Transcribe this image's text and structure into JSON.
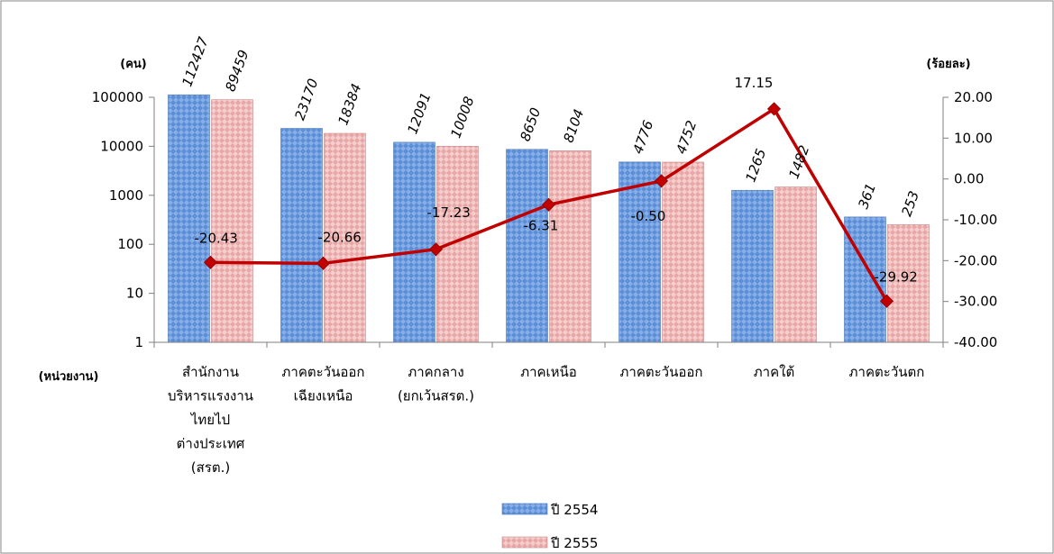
{
  "chart_data": {
    "type": "bar",
    "y_unit_left": "(คน)",
    "y_unit_right": "(ร้อยละ)",
    "x_unit": "(หน่วยงาน)",
    "categories": [
      [
        "สำนักงาน",
        "บริหารแรงงาน",
        "ไทยไป",
        "ต่างประเทศ",
        "(สรต.)"
      ],
      [
        "ภาคตะวันออก",
        "เฉียงเหนือ"
      ],
      [
        "ภาคกลาง",
        "(ยกเว้นสรต.)"
      ],
      [
        "ภาคเหนือ"
      ],
      [
        "ภาคตะวันออก"
      ],
      [
        "ภาคใต้"
      ],
      [
        "ภาคตะวันตก"
      ]
    ],
    "left_axis": {
      "scale": "log",
      "ticks": [
        "1",
        "10",
        "100",
        "1000",
        "10000",
        "100000"
      ],
      "range": [
        1,
        100000
      ]
    },
    "right_axis": {
      "ticks": [
        "20.00",
        "10.00",
        "0.00",
        "-10.00",
        "-20.00",
        "-30.00",
        "-40.00"
      ],
      "range": [
        -40,
        20
      ]
    },
    "series": [
      {
        "name": "ปี 2554",
        "kind": "bar",
        "color": "#5b8ed6",
        "values": [
          112427,
          23170,
          12091,
          8650,
          4776,
          1265,
          361
        ],
        "labels": [
          "112427",
          "23170",
          "12091",
          "8650",
          "4776",
          "1265",
          "361"
        ]
      },
      {
        "name": "ปี 2555",
        "kind": "bar",
        "color": "#e8a6a6",
        "values": [
          89459,
          18384,
          10008,
          8104,
          4752,
          1482,
          253
        ],
        "labels": [
          "89459",
          "18384",
          "10008",
          "8104",
          "4752",
          "1482",
          "253"
        ]
      },
      {
        "kind": "line",
        "axis": "right",
        "color": "#c00000",
        "values": [
          -20.43,
          -20.66,
          -17.23,
          -6.31,
          -0.5,
          17.15,
          -29.92
        ],
        "labels": [
          "-20.43",
          "-20.66",
          "-17.23",
          "-6.31",
          "-0.50",
          "17.15",
          "-29.92"
        ]
      }
    ],
    "legend": {
      "position": "bottom"
    }
  }
}
